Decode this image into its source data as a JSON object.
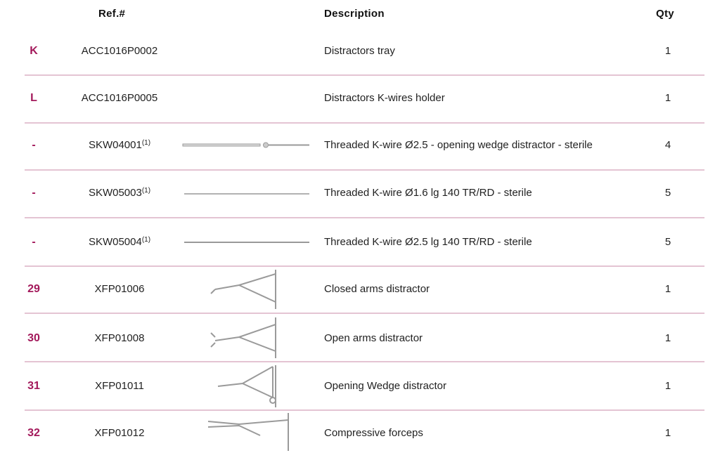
{
  "table": {
    "headers": {
      "ref": "Ref.#",
      "description": "Description",
      "qty": "Qty"
    },
    "rows": [
      {
        "key": "K",
        "ref": "ACC1016P0002",
        "description": "Distractors tray",
        "qty": 1
      },
      {
        "key": "L",
        "ref": "ACC1016P0005",
        "description": "Distractors K-wires holder",
        "qty": 1
      },
      {
        "key": "-",
        "ref": "SKW04001",
        "note": "(1)",
        "description": "Threaded K-wire Ø2.5 - opening wedge distractor - sterile",
        "qty": 4
      },
      {
        "key": "-",
        "ref": "SKW05003",
        "note": "(1)",
        "description": "Threaded K-wire Ø1.6 lg 140 TR/RD - sterile",
        "qty": 5
      },
      {
        "key": "-",
        "ref": "SKW05004",
        "note": "(1)",
        "description": "Threaded K-wire Ø2.5 lg 140 TR/RD - sterile",
        "qty": 5
      },
      {
        "key": "29",
        "ref": "XFP01006",
        "description": "Closed arms distractor",
        "qty": 1
      },
      {
        "key": "30",
        "ref": "XFP01008",
        "description": "Open arms distractor",
        "qty": 1
      },
      {
        "key": "31",
        "ref": "XFP01011",
        "description": "Opening Wedge distractor",
        "qty": 1
      },
      {
        "key": "32",
        "ref": "XFP01012",
        "description": "Compressive forceps",
        "qty": 1
      }
    ]
  }
}
